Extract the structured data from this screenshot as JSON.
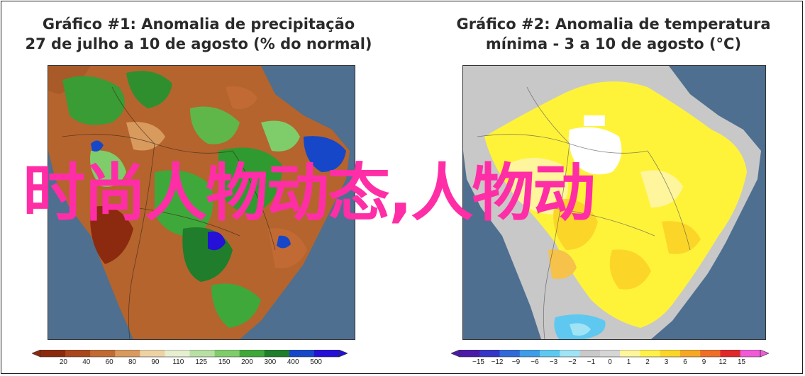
{
  "panel1": {
    "title_line1": "Gráfico #1: Anomalia de precipitação",
    "title_line2": "27 de julho a 10 de agosto (% do normal)",
    "colorbar_ticks": [
      "20",
      "40",
      "60",
      "80",
      "90",
      "110",
      "125",
      "150",
      "200",
      "300",
      "400",
      "500"
    ],
    "colorbar_colors": [
      "#8b2a0e",
      "#a8471c",
      "#c26a34",
      "#d99a5e",
      "#edd2a4",
      "#e6efcf",
      "#b8e0a5",
      "#7fcd6a",
      "#3fa83a",
      "#1f7d2b",
      "#1747c9",
      "#2410d6"
    ]
  },
  "panel2": {
    "title_line1": "Gráfico #2: Anomalia de temperatura",
    "title_line2": "mínima - 3 a 10 de agosto (°C)",
    "colorbar_ticks": [
      "−15",
      "−12",
      "−9",
      "−6",
      "−3",
      "−2",
      "−1",
      "0",
      "1",
      "2",
      "3",
      "6",
      "9",
      "12",
      "15"
    ],
    "colorbar_colors": [
      "#4b1aa8",
      "#3436c8",
      "#2f6ad8",
      "#3e9ce8",
      "#5fc8f0",
      "#9fe3f5",
      "#c9c9c9",
      "#d6d6d6",
      "#fff59c",
      "#fff14a",
      "#fbd629",
      "#f6a824",
      "#ef6f28",
      "#e0282a",
      "#f05ad6"
    ]
  },
  "overlay": {
    "text": "时尚人物动态,人物动"
  },
  "colors": {
    "ocean": "#4e6f8f",
    "land_gray": "#c8c8c8",
    "brown": "#b5642d",
    "green": "#2f9a2f",
    "yellow": "#fff33a",
    "overlay_pink": "#ff2ea6"
  }
}
